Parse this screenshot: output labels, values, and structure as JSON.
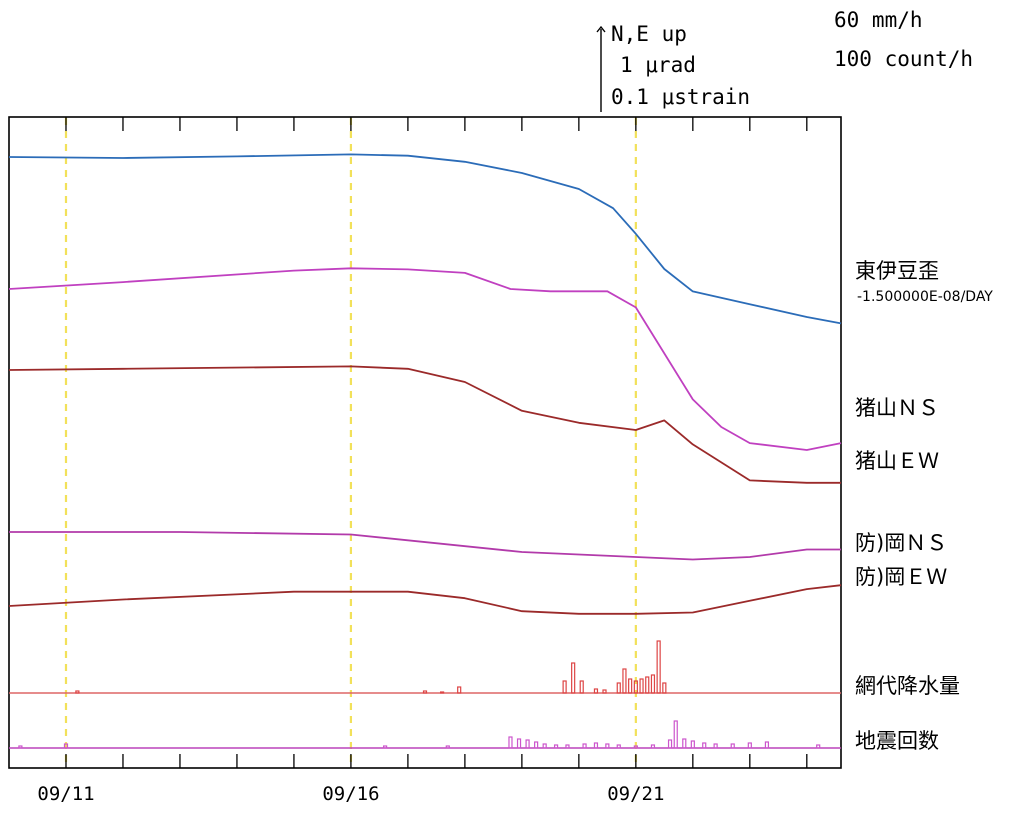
{
  "chart_data": {
    "type": "line",
    "title": "",
    "scale_legend": [
      "N,E up",
      "1 μrad",
      "0.1 μstrain"
    ],
    "scale_units": [
      "60 mm/h",
      "100 count/h"
    ],
    "x_start_date": "09/10",
    "x_end_date": "09/24",
    "xtick_labels": [
      {
        "date": "09/11",
        "text": "09/11"
      },
      {
        "date": "09/16",
        "text": "09/16"
      },
      {
        "date": "09/21",
        "text": "09/21"
      }
    ],
    "grid_dates": [
      "09/11",
      "09/16",
      "09/21"
    ],
    "series": [
      {
        "name": "東伊豆歪",
        "sublabel": "-1.500000E-08/DAY",
        "color": "#2b6cb8",
        "values": [
          [
            0,
            0
          ],
          [
            2,
            -0.3
          ],
          [
            4,
            0.2
          ],
          [
            6,
            0.8
          ],
          [
            7,
            0.4
          ],
          [
            8,
            -1.5
          ],
          [
            9,
            -5
          ],
          [
            10,
            -10
          ],
          [
            10.6,
            -16
          ],
          [
            11,
            -24
          ],
          [
            11.5,
            -35
          ],
          [
            12,
            -42
          ],
          [
            13,
            -46
          ],
          [
            14,
            -50
          ],
          [
            14.6,
            -52
          ]
        ]
      },
      {
        "name": "猪山ＮＳ",
        "color": "#c040c0",
        "values": [
          [
            0,
            0
          ],
          [
            2,
            3
          ],
          [
            5,
            8
          ],
          [
            6,
            9
          ],
          [
            7,
            8.5
          ],
          [
            8,
            7
          ],
          [
            8.8,
            0
          ],
          [
            9.5,
            -1
          ],
          [
            10.5,
            -1
          ],
          [
            11,
            -8
          ],
          [
            11.5,
            -28
          ],
          [
            12,
            -48
          ],
          [
            12.5,
            -60
          ],
          [
            13,
            -67
          ],
          [
            14,
            -70
          ],
          [
            14.6,
            -67
          ]
        ]
      },
      {
        "name": "猪山ＥＷ",
        "color": "#9b2a2a",
        "values": [
          [
            0,
            0
          ],
          [
            2,
            0.5
          ],
          [
            6,
            1.5
          ],
          [
            7,
            0.5
          ],
          [
            8,
            -5
          ],
          [
            9,
            -17
          ],
          [
            10,
            -22
          ],
          [
            11,
            -25
          ],
          [
            11.5,
            -21
          ],
          [
            12,
            -31
          ],
          [
            13,
            -46
          ],
          [
            14,
            -47
          ],
          [
            14.6,
            -47
          ]
        ]
      },
      {
        "name": "防)岡ＮＳ",
        "color": "#b23aaa",
        "values": [
          [
            0,
            0
          ],
          [
            3,
            0
          ],
          [
            6,
            -1
          ],
          [
            9,
            -8
          ],
          [
            11,
            -10
          ],
          [
            12,
            -11
          ],
          [
            13,
            -10
          ],
          [
            14,
            -7
          ],
          [
            14.6,
            -7
          ]
        ]
      },
      {
        "name": "防)岡ＥＷ",
        "color": "#9b2a2a",
        "values": [
          [
            0,
            0
          ],
          [
            2,
            5
          ],
          [
            5,
            11
          ],
          [
            7,
            11
          ],
          [
            8,
            6
          ],
          [
            9,
            -4
          ],
          [
            10,
            -6
          ],
          [
            11,
            -6
          ],
          [
            12,
            -5
          ],
          [
            13,
            4
          ],
          [
            14,
            13
          ],
          [
            14.6,
            16
          ]
        ]
      }
    ],
    "bar_series": [
      {
        "name": "網代降水量",
        "color": "#dd4444",
        "baseline_color": "#dd6666",
        "values": [
          [
            1.2,
            2
          ],
          [
            7.3,
            2
          ],
          [
            7.6,
            1
          ],
          [
            7.9,
            6
          ],
          [
            9.75,
            12
          ],
          [
            9.9,
            30
          ],
          [
            10.05,
            12
          ],
          [
            10.3,
            4
          ],
          [
            10.45,
            3
          ],
          [
            10.7,
            10
          ],
          [
            10.8,
            24
          ],
          [
            10.9,
            14
          ],
          [
            11,
            12
          ],
          [
            11.1,
            14
          ],
          [
            11.2,
            16
          ],
          [
            11.3,
            18
          ],
          [
            11.4,
            52
          ],
          [
            11.5,
            10
          ]
        ]
      },
      {
        "name": "地震回数",
        "color": "#cc55cc",
        "baseline_color": "#bb44bb",
        "values": [
          [
            0.2,
            2
          ],
          [
            1,
            4
          ],
          [
            6.6,
            2
          ],
          [
            7.7,
            2
          ],
          [
            8.8,
            11
          ],
          [
            8.95,
            9
          ],
          [
            9.1,
            8
          ],
          [
            9.25,
            6
          ],
          [
            9.4,
            4
          ],
          [
            9.6,
            3
          ],
          [
            9.8,
            3
          ],
          [
            10.1,
            4
          ],
          [
            10.3,
            5
          ],
          [
            10.5,
            4
          ],
          [
            10.7,
            3
          ],
          [
            11,
            2
          ],
          [
            11.3,
            3
          ],
          [
            11.6,
            8
          ],
          [
            11.7,
            27
          ],
          [
            11.85,
            9
          ],
          [
            12,
            7
          ],
          [
            12.2,
            5
          ],
          [
            12.4,
            4
          ],
          [
            12.7,
            4
          ],
          [
            13,
            5
          ],
          [
            13.3,
            6
          ],
          [
            14.2,
            3
          ]
        ]
      }
    ]
  }
}
